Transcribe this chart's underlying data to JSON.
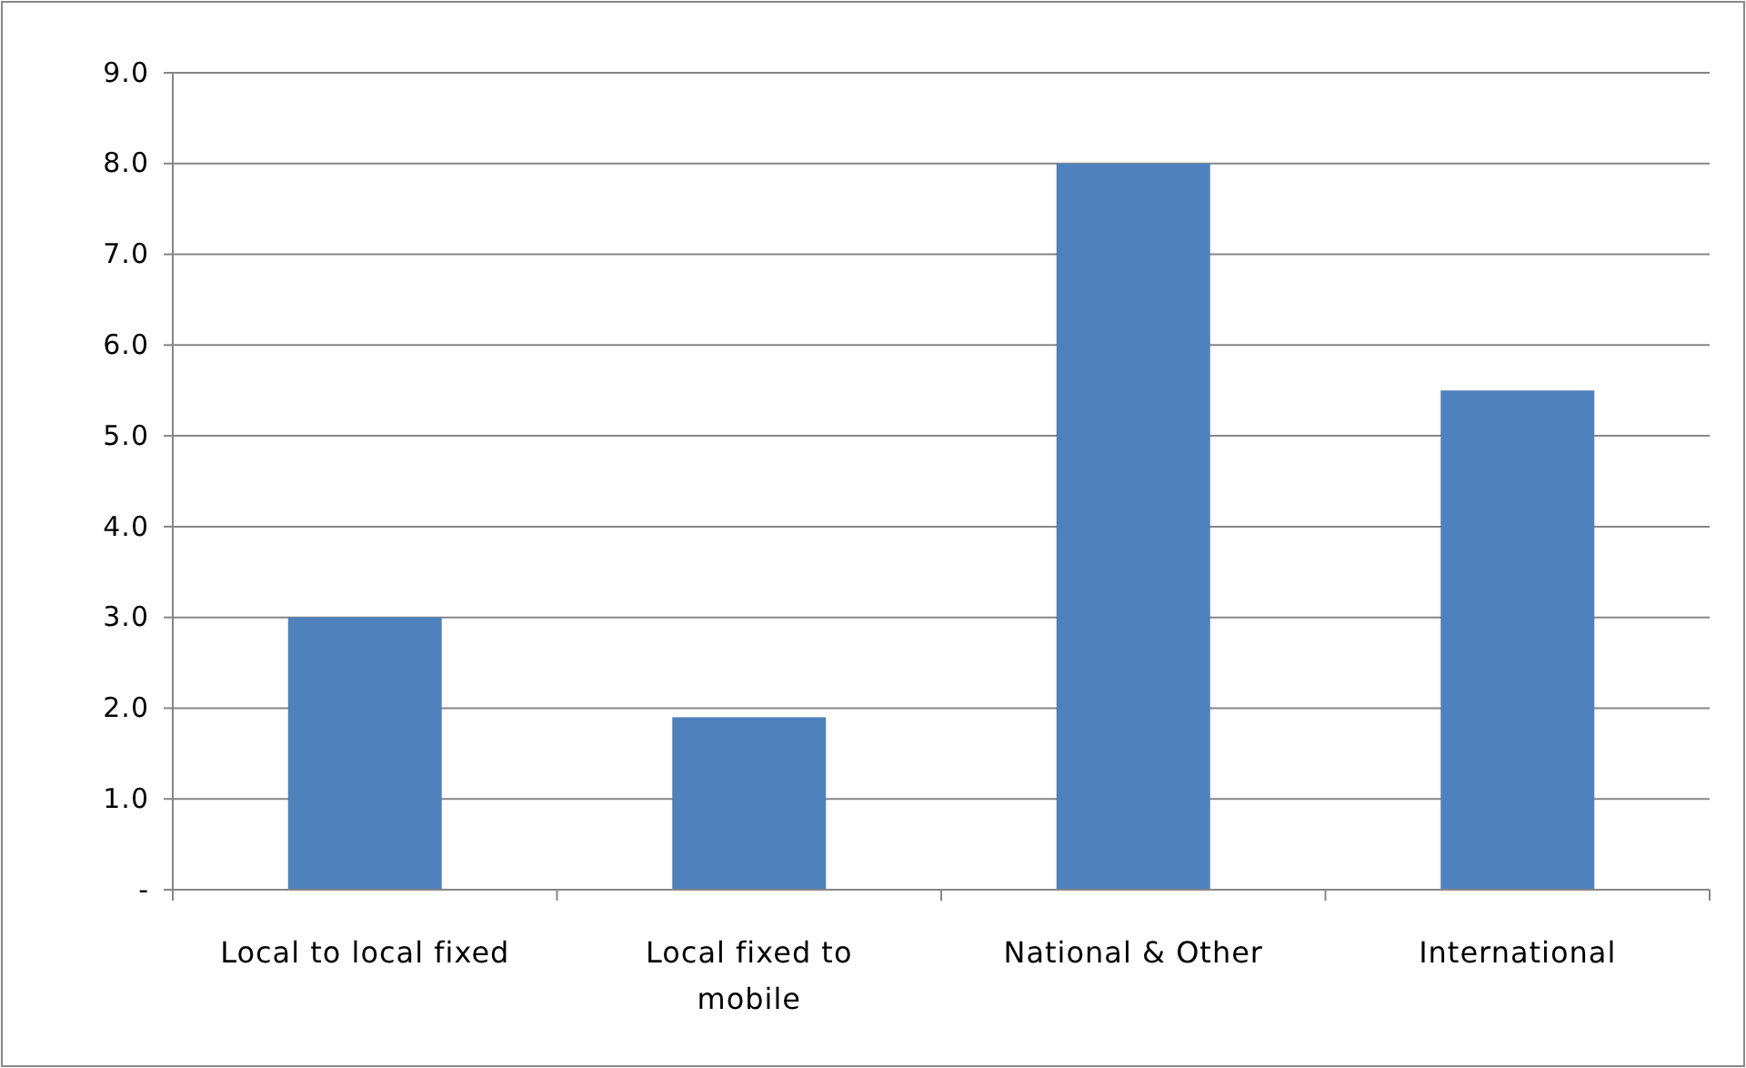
{
  "chart_data": {
    "type": "bar",
    "categories": [
      "Local to local fixed",
      "Local fixed to mobile",
      "National & Other",
      "International"
    ],
    "values": [
      3.0,
      1.9,
      8.0,
      5.5
    ],
    "color": "#4f81bd",
    "ylim": [
      0,
      9
    ],
    "yticks": [
      {
        "value": 0,
        "label": "-"
      },
      {
        "value": 1,
        "label": "1.0"
      },
      {
        "value": 2,
        "label": "2.0"
      },
      {
        "value": 3,
        "label": "3.0"
      },
      {
        "value": 4,
        "label": "4.0"
      },
      {
        "value": 5,
        "label": "5.0"
      },
      {
        "value": 6,
        "label": "6.0"
      },
      {
        "value": 7,
        "label": "7.0"
      },
      {
        "value": 8,
        "label": "8.0"
      },
      {
        "value": 9,
        "label": "9.0"
      }
    ],
    "grid": "y"
  }
}
